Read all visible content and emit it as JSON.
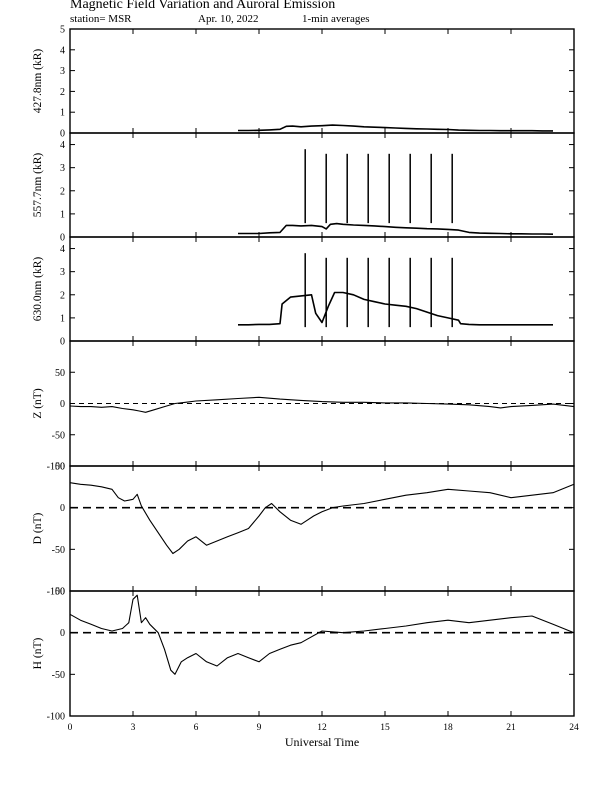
{
  "header": {
    "title": "Magnetic Field Variation and Auroral Emission",
    "station": "station= MSR",
    "date": "Apr. 10, 2022",
    "averaging": "1-min averages"
  },
  "chart_data": {
    "type": "line",
    "xlabel": "Universal Time",
    "xlim": [
      0,
      24
    ],
    "xticks": [
      0,
      3,
      6,
      9,
      12,
      15,
      18,
      21,
      24
    ],
    "panels": [
      {
        "ylabel": "427.8nm (kR)",
        "ylim": [
          0,
          5
        ],
        "yticks": [
          0,
          1,
          2,
          3,
          4,
          5
        ],
        "series": [
          {
            "x": [
              8.0,
              8.5,
              9.0,
              9.5,
              10.0,
              10.3,
              10.6,
              11.0,
              11.5,
              12.0,
              12.5,
              13.0,
              13.5,
              14.0,
              14.5,
              15.0,
              15.5,
              16.0,
              16.5,
              17.0,
              17.5,
              18.0,
              18.5,
              19.0,
              19.5,
              20.0,
              20.5,
              21.0,
              21.5,
              22.0,
              22.5,
              23.0
            ],
            "y": [
              0.12,
              0.12,
              0.13,
              0.15,
              0.18,
              0.32,
              0.33,
              0.3,
              0.33,
              0.35,
              0.38,
              0.36,
              0.33,
              0.3,
              0.28,
              0.26,
              0.24,
              0.22,
              0.2,
              0.19,
              0.18,
              0.17,
              0.14,
              0.13,
              0.12,
              0.12,
              0.11,
              0.11,
              0.11,
              0.11,
              0.1,
              0.1
            ]
          }
        ],
        "spikes": []
      },
      {
        "ylabel": "557.7nm (kR)",
        "ylim": [
          0,
          4.5
        ],
        "yticks": [
          0,
          1,
          2,
          3,
          4
        ],
        "series": [
          {
            "x": [
              8.0,
              8.5,
              9.0,
              9.5,
              10.0,
              10.3,
              10.6,
              11.0,
              11.5,
              12.0,
              12.2,
              12.4,
              12.7,
              13.0,
              13.5,
              14.0,
              14.5,
              15.0,
              15.5,
              16.0,
              16.5,
              17.0,
              17.5,
              18.0,
              18.5,
              19.0,
              19.5,
              20.0,
              20.5,
              21.0,
              21.5,
              22.0,
              22.5,
              23.0
            ],
            "y": [
              0.15,
              0.15,
              0.15,
              0.18,
              0.2,
              0.5,
              0.5,
              0.48,
              0.5,
              0.45,
              0.35,
              0.55,
              0.58,
              0.55,
              0.52,
              0.5,
              0.48,
              0.45,
              0.42,
              0.4,
              0.38,
              0.36,
              0.35,
              0.33,
              0.3,
              0.2,
              0.17,
              0.16,
              0.15,
              0.14,
              0.14,
              0.13,
              0.13,
              0.12
            ]
          }
        ],
        "spikes": [
          {
            "x": 11.2,
            "y": 3.8
          },
          {
            "x": 12.2,
            "y": 3.6
          },
          {
            "x": 13.2,
            "y": 3.6
          },
          {
            "x": 14.2,
            "y": 3.6
          },
          {
            "x": 15.2,
            "y": 3.6
          },
          {
            "x": 16.2,
            "y": 3.6
          },
          {
            "x": 17.2,
            "y": 3.6
          },
          {
            "x": 18.2,
            "y": 3.6
          }
        ]
      },
      {
        "ylabel": "630.0nm (kR)",
        "ylim": [
          0,
          4.5
        ],
        "yticks": [
          0,
          1,
          2,
          3,
          4
        ],
        "series": [
          {
            "x": [
              8.0,
              8.5,
              9.0,
              9.5,
              10.0,
              10.1,
              10.5,
              11.0,
              11.5,
              11.7,
              12.0,
              12.3,
              12.6,
              13.0,
              13.5,
              14.0,
              14.5,
              15.0,
              15.5,
              16.0,
              16.5,
              17.0,
              17.5,
              18.0,
              18.5,
              18.6,
              19.0,
              19.5,
              20.0,
              20.5,
              21.0,
              21.5,
              22.0,
              22.5,
              23.0
            ],
            "y": [
              0.7,
              0.7,
              0.72,
              0.72,
              0.75,
              1.6,
              1.9,
              1.95,
              2.0,
              1.2,
              0.8,
              1.5,
              2.1,
              2.1,
              2.0,
              1.8,
              1.7,
              1.6,
              1.55,
              1.5,
              1.4,
              1.25,
              1.1,
              1.0,
              0.9,
              0.75,
              0.72,
              0.7,
              0.7,
              0.7,
              0.7,
              0.7,
              0.7,
              0.7,
              0.7
            ]
          }
        ],
        "spikes": [
          {
            "x": 11.2,
            "y": 3.8
          },
          {
            "x": 12.2,
            "y": 3.6
          },
          {
            "x": 13.2,
            "y": 3.6
          },
          {
            "x": 14.2,
            "y": 3.6
          },
          {
            "x": 15.2,
            "y": 3.6
          },
          {
            "x": 16.2,
            "y": 3.6
          },
          {
            "x": 17.2,
            "y": 3.6
          },
          {
            "x": 18.2,
            "y": 3.6
          }
        ]
      },
      {
        "ylabel": "Z (nT)",
        "ylim": [
          -100,
          100
        ],
        "yticks": [
          -100,
          -50,
          0,
          50
        ],
        "ytick_labels": [
          "-100",
          "-50",
          "0",
          "50"
        ],
        "zero_line": "dashed",
        "series": [
          {
            "x": [
              0,
              0.5,
              1,
              1.5,
              2,
              2.5,
              3,
              3.3,
              3.6,
              4,
              4.5,
              5,
              5.5,
              6,
              7,
              8,
              9,
              10,
              11,
              12,
              13,
              14,
              15,
              16,
              17,
              18,
              19,
              20,
              20.5,
              21,
              22,
              23,
              24
            ],
            "y": [
              -4,
              -5,
              -5,
              -6,
              -5,
              -8,
              -10,
              -12,
              -14,
              -10,
              -5,
              0,
              2,
              4,
              6,
              8,
              10,
              7,
              5,
              3,
              2,
              2,
              1,
              1,
              0,
              -1,
              -2,
              -5,
              -7,
              -5,
              -3,
              -1,
              -5
            ]
          }
        ]
      },
      {
        "ylabel": "D (nT)",
        "ylim": [
          -100,
          50
        ],
        "yticks": [
          -100,
          -50,
          0,
          50
        ],
        "ytick_labels": [
          "-100",
          "-50",
          "0",
          "50"
        ],
        "zero_line": "dashed",
        "series": [
          {
            "x": [
              0,
              0.5,
              1,
              1.5,
              2,
              2.3,
              2.6,
              3,
              3.2,
              3.4,
              3.8,
              4.2,
              4.6,
              4.9,
              5.2,
              5.6,
              6,
              6.5,
              7,
              7.5,
              8,
              8.5,
              9,
              9.3,
              9.6,
              10,
              10.5,
              11,
              11.3,
              11.6,
              12,
              12.5,
              13,
              14,
              15,
              16,
              17,
              18,
              19,
              20,
              21,
              22,
              23,
              24
            ],
            "y": [
              30,
              28,
              27,
              25,
              22,
              12,
              8,
              10,
              16,
              2,
              -15,
              -30,
              -45,
              -55,
              -50,
              -40,
              -35,
              -45,
              -40,
              -35,
              -30,
              -25,
              -10,
              0,
              5,
              -5,
              -15,
              -20,
              -15,
              -10,
              -5,
              0,
              2,
              5,
              10,
              15,
              18,
              22,
              20,
              18,
              12,
              15,
              18,
              28
            ]
          }
        ]
      },
      {
        "ylabel": "H (nT)",
        "ylim": [
          -100,
          50
        ],
        "yticks": [
          -100,
          -50,
          0,
          50
        ],
        "ytick_labels": [
          "-100",
          "-50",
          "0",
          "50"
        ],
        "zero_line": "dashed",
        "series": [
          {
            "x": [
              0,
              0.5,
              1,
              1.5,
              2,
              2.5,
              2.8,
              3,
              3.2,
              3.4,
              3.6,
              3.8,
              4.2,
              4.5,
              4.8,
              5,
              5.3,
              5.6,
              6,
              6.5,
              7,
              7.5,
              8,
              8.5,
              9,
              9.5,
              10,
              10.5,
              11,
              11.5,
              12,
              13,
              14,
              15,
              16,
              17,
              18,
              19,
              20,
              21,
              22,
              23,
              24
            ],
            "y": [
              22,
              15,
              10,
              5,
              2,
              5,
              12,
              40,
              45,
              12,
              18,
              10,
              0,
              -20,
              -45,
              -50,
              -35,
              -30,
              -25,
              -35,
              -40,
              -30,
              -25,
              -30,
              -35,
              -25,
              -20,
              -15,
              -12,
              -5,
              2,
              0,
              2,
              5,
              8,
              12,
              15,
              12,
              15,
              18,
              20,
              10,
              0
            ]
          }
        ]
      }
    ]
  }
}
